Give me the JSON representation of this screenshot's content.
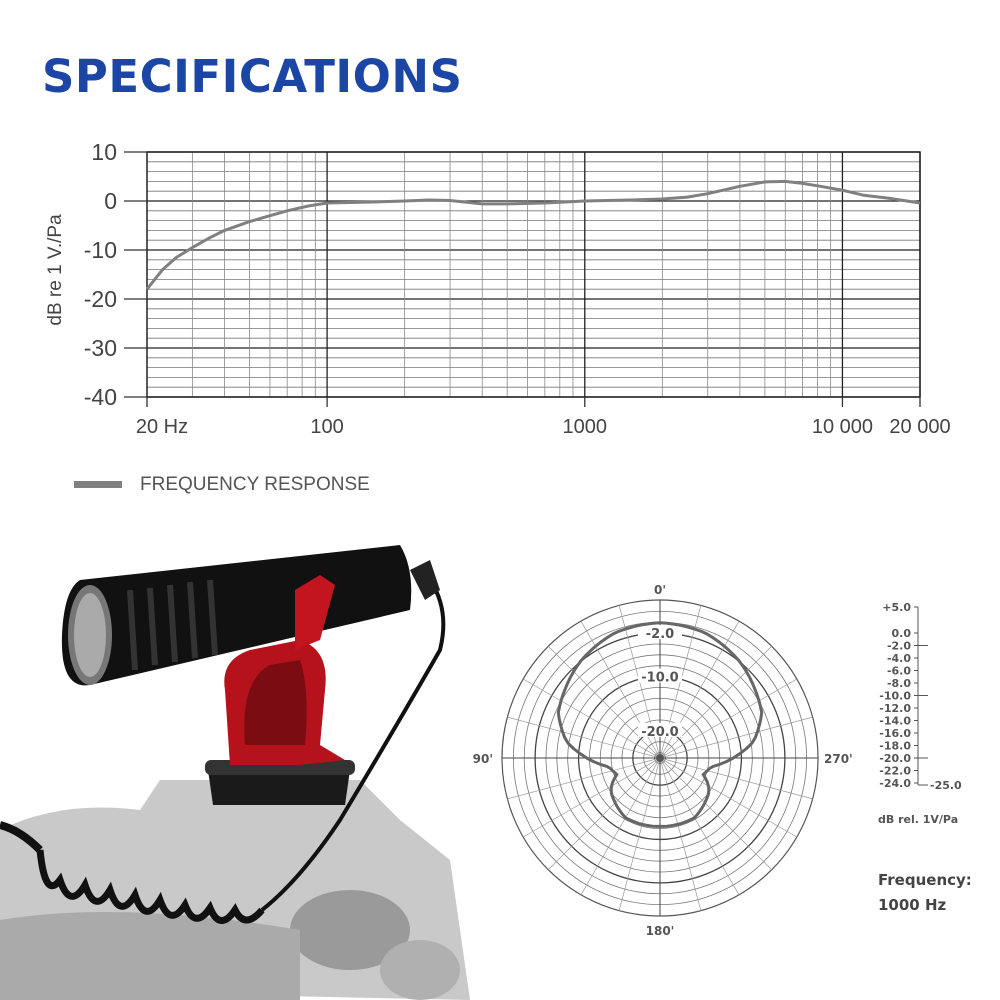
{
  "header": {
    "title": "SPECIFICATIONS"
  },
  "legend": {
    "label": "FREQUENCY RESPONSE",
    "color": "#808080"
  },
  "chart_data": [
    {
      "type": "line",
      "title": "",
      "ylabel": "dB re 1 V./Pa",
      "xlabel": "",
      "xscale": "log",
      "xlim": [
        20,
        20000
      ],
      "ylim": [
        -40,
        10
      ],
      "grid": true,
      "yticks": [
        "10",
        "0",
        "-10",
        "-20",
        "-30",
        "-40"
      ],
      "xticks": [
        {
          "value": 20,
          "label": "20 Hz"
        },
        {
          "value": 100,
          "label": "100"
        },
        {
          "value": 1000,
          "label": "1000"
        },
        {
          "value": 10000,
          "label": "10 000"
        },
        {
          "value": 20000,
          "label": "20 000"
        }
      ],
      "series": [
        {
          "name": "FREQUENCY RESPONSE",
          "color": "#808080",
          "x": [
            20,
            23,
            26,
            30,
            35,
            40,
            50,
            60,
            70,
            85,
            100,
            150,
            200,
            250,
            300,
            400,
            500,
            700,
            1000,
            1500,
            2000,
            2500,
            3000,
            4000,
            5000,
            6000,
            7000,
            8000,
            10000,
            12000,
            15000,
            20000
          ],
          "y": [
            -18,
            -14,
            -11.5,
            -9.5,
            -7.5,
            -6,
            -4.2,
            -3,
            -2,
            -1,
            -0.4,
            -0.2,
            0,
            0.2,
            0.1,
            -0.6,
            -0.6,
            -0.4,
            0,
            0.2,
            0.4,
            0.8,
            1.5,
            3,
            3.9,
            4,
            3.6,
            3.1,
            2.2,
            1.2,
            0.6,
            -0.4
          ]
        }
      ]
    },
    {
      "type": "polar",
      "frequency_label": "Frequency:",
      "frequency_value": "1000 Hz",
      "unit_label": "dB rel. 1V/Pa",
      "angle_labels": {
        "top": "0'",
        "left": "90'",
        "right": "270'",
        "bottom": "180'"
      },
      "ring_labels": [
        "-2.0",
        "-10.0",
        "-20.0"
      ],
      "scale_labels": [
        "+5.0",
        "0.0",
        "-2.0",
        "-4.0",
        "-6.0",
        "-8.0",
        "-10.0",
        "-12.0",
        "-14.0",
        "-16.0",
        "-18.0",
        "-20.0",
        "-22.0",
        "-24.0",
        "-25.0"
      ],
      "pattern": {
        "angles": [
          0,
          20,
          40,
          55,
          66,
          80,
          90,
          100,
          111,
          118,
          125,
          150,
          180
        ],
        "db": [
          -0.1,
          -0.5,
          -2,
          -3.5,
          -4.5,
          -7.5,
          -11.5,
          -15.5,
          -16.5,
          -15,
          -14,
          -12.3,
          -12.4
        ]
      }
    }
  ]
}
